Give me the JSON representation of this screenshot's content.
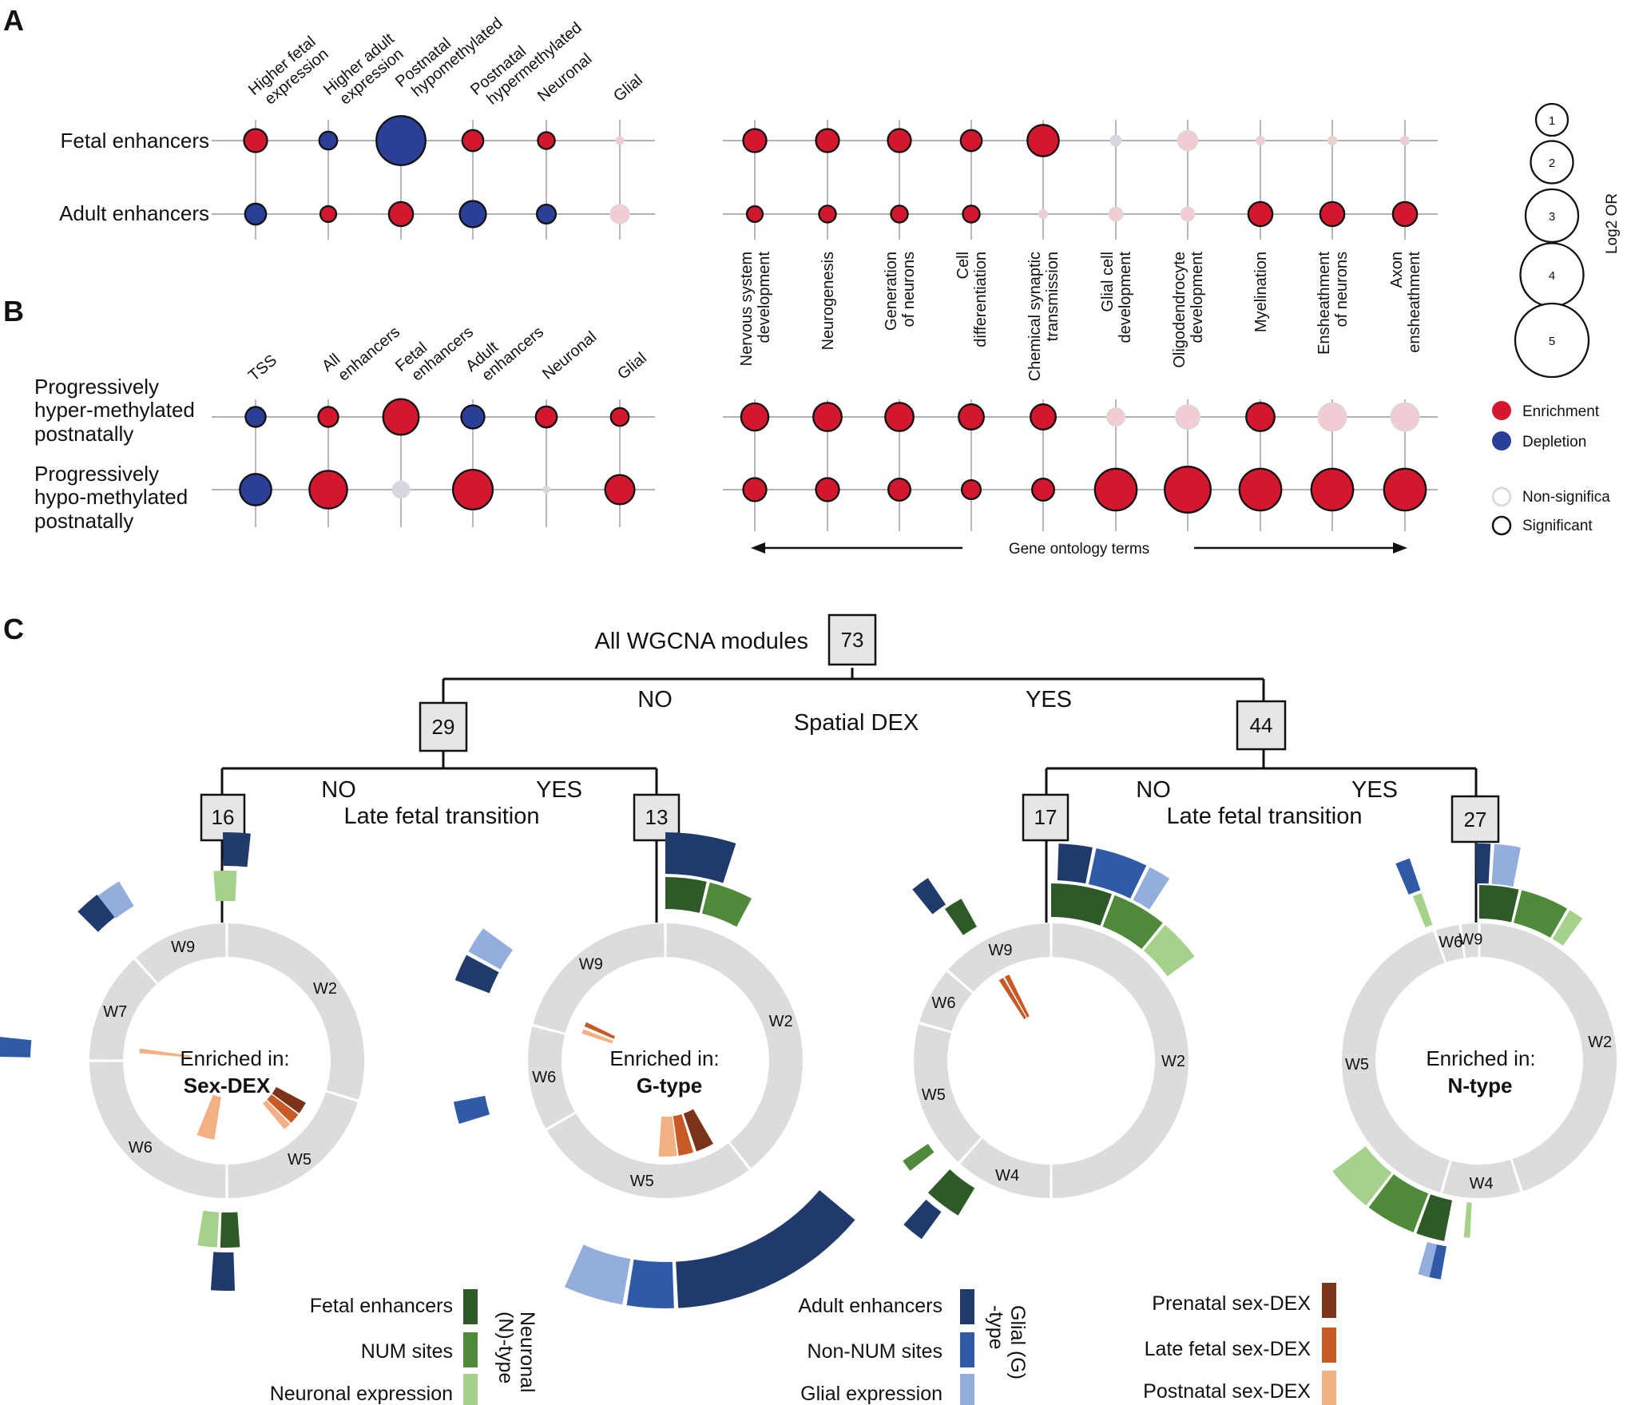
{
  "panels": {
    "a": "A",
    "b": "B",
    "c": "C"
  },
  "colors": {
    "enrichment": "#d3172e",
    "depletion": "#2b3f98",
    "nonsig_enrichment": "#f2ccd3",
    "nonsig_neutral": "#d5d8de",
    "ring": "#dcdcdc",
    "fetal_enhancers": "#2e5a28",
    "num_sites": "#4e8a3a",
    "neuronal_expression": "#a5d18a",
    "adult_enhancers": "#1f3a6b",
    "non_num_sites": "#2f5aa8",
    "glial_expression": "#93aedd",
    "prenatal_sex_dex": "#7d3319",
    "late_fetal_sex_dex": "#c85a26",
    "postnatal_sex_dex": "#f3b085"
  },
  "panel_a": {
    "rows": [
      "Fetal enhancers",
      "Adult enhancers"
    ],
    "columns": [
      "Higher fetal expression",
      "Higher adult expression",
      "Postnatal hypomethylated",
      "Postnatal hypermethylated",
      "Neuronal",
      "Glial"
    ],
    "cells": [
      [
        {
          "log2or": 2.0,
          "dir": "enrichment",
          "sig": true
        },
        {
          "log2or": 1.5,
          "dir": "depletion",
          "sig": true
        },
        {
          "log2or": 4.5,
          "dir": "depletion",
          "sig": true
        },
        {
          "log2or": 1.8,
          "dir": "enrichment",
          "sig": true
        },
        {
          "log2or": 1.4,
          "dir": "enrichment",
          "sig": true
        },
        {
          "log2or": 0.5,
          "dir": "enrichment",
          "sig": false
        }
      ],
      [
        {
          "log2or": 1.8,
          "dir": "depletion",
          "sig": true
        },
        {
          "log2or": 1.3,
          "dir": "enrichment",
          "sig": true
        },
        {
          "log2or": 2.1,
          "dir": "enrichment",
          "sig": true
        },
        {
          "log2or": 2.3,
          "dir": "depletion",
          "sig": true
        },
        {
          "log2or": 1.6,
          "dir": "depletion",
          "sig": true
        },
        {
          "log2or": 1.6,
          "dir": "enrichment",
          "sig": false
        }
      ]
    ]
  },
  "panel_b": {
    "rows": [
      "Progressively hyper-methylated postnatally",
      "Progressively hypo-methylated postnatally"
    ],
    "columns": [
      "TSS",
      "All enhancers",
      "Fetal enhancers",
      "Adult enhancers",
      "Neuronal",
      "Glial"
    ],
    "cells": [
      [
        {
          "log2or": 1.7,
          "dir": "depletion",
          "sig": true
        },
        {
          "log2or": 1.7,
          "dir": "enrichment",
          "sig": true
        },
        {
          "log2or": 3.2,
          "dir": "enrichment",
          "sig": true
        },
        {
          "log2or": 2.0,
          "dir": "depletion",
          "sig": true
        },
        {
          "log2or": 1.8,
          "dir": "enrichment",
          "sig": true
        },
        {
          "log2or": 1.5,
          "dir": "enrichment",
          "sig": true
        }
      ],
      [
        {
          "log2or": 2.8,
          "dir": "depletion",
          "sig": true
        },
        {
          "log2or": 3.4,
          "dir": "enrichment",
          "sig": true
        },
        {
          "log2or": 1.4,
          "dir": "neutral",
          "sig": false
        },
        {
          "log2or": 3.6,
          "dir": "enrichment",
          "sig": true
        },
        {
          "log2or": 0.4,
          "dir": "neutral",
          "sig": false
        },
        {
          "log2or": 2.6,
          "dir": "enrichment",
          "sig": true
        }
      ]
    ]
  },
  "go": {
    "terms": [
      "Nervous system development",
      "Neurogenesis",
      "Generation of neurons",
      "Cell differentiation",
      "Chemical synaptic transmission",
      "Glial cell development",
      "Oligodendrocyte development",
      "Myelination",
      "Ensheathment of neurons",
      "Axon ensheathment"
    ],
    "term_lines": [
      [
        "Nervous system",
        "development"
      ],
      [
        "Neurogenesis"
      ],
      [
        "Generation",
        "of neurons"
      ],
      [
        "Cell",
        "differentiation"
      ],
      [
        "Chemical synaptic",
        "transmission"
      ],
      [
        "Glial cell",
        "development"
      ],
      [
        "Oligodendrocyte",
        "development"
      ],
      [
        "Myelination"
      ],
      [
        "Ensheathment",
        "of neurons"
      ],
      [
        "Axon",
        "ensheathment"
      ]
    ],
    "a_rows": [
      [
        {
          "log2or": 2.0,
          "dir": "enrichment",
          "sig": true
        },
        {
          "log2or": 2.0,
          "dir": "enrichment",
          "sig": true
        },
        {
          "log2or": 2.0,
          "dir": "enrichment",
          "sig": true
        },
        {
          "log2or": 1.8,
          "dir": "enrichment",
          "sig": true
        },
        {
          "log2or": 2.8,
          "dir": "enrichment",
          "sig": true
        },
        {
          "log2or": 0.8,
          "dir": "neutral",
          "sig": false
        },
        {
          "log2or": 1.7,
          "dir": "enrichment",
          "sig": false
        },
        {
          "log2or": 0.6,
          "dir": "enrichment",
          "sig": false
        },
        {
          "log2or": 0.6,
          "dir": "enrichment",
          "sig": false
        },
        {
          "log2or": 0.6,
          "dir": "enrichment",
          "sig": false
        }
      ],
      [
        {
          "log2or": 1.3,
          "dir": "enrichment",
          "sig": true
        },
        {
          "log2or": 1.4,
          "dir": "enrichment",
          "sig": true
        },
        {
          "log2or": 1.4,
          "dir": "enrichment",
          "sig": true
        },
        {
          "log2or": 1.4,
          "dir": "enrichment",
          "sig": true
        },
        {
          "log2or": 0.6,
          "dir": "enrichment",
          "sig": false
        },
        {
          "log2or": 1.1,
          "dir": "enrichment",
          "sig": false
        },
        {
          "log2or": 1.1,
          "dir": "enrichment",
          "sig": false
        },
        {
          "log2or": 2.1,
          "dir": "enrichment",
          "sig": true
        },
        {
          "log2or": 2.1,
          "dir": "enrichment",
          "sig": true
        },
        {
          "log2or": 2.1,
          "dir": "enrichment",
          "sig": true
        }
      ]
    ],
    "b_rows": [
      [
        {
          "log2or": 2.4,
          "dir": "enrichment",
          "sig": true
        },
        {
          "log2or": 2.5,
          "dir": "enrichment",
          "sig": true
        },
        {
          "log2or": 2.5,
          "dir": "enrichment",
          "sig": true
        },
        {
          "log2or": 2.2,
          "dir": "enrichment",
          "sig": true
        },
        {
          "log2or": 2.2,
          "dir": "enrichment",
          "sig": true
        },
        {
          "log2or": 1.5,
          "dir": "enrichment",
          "sig": false
        },
        {
          "log2or": 2.1,
          "dir": "enrichment",
          "sig": false
        },
        {
          "log2or": 2.5,
          "dir": "enrichment",
          "sig": true
        },
        {
          "log2or": 2.5,
          "dir": "enrichment",
          "sig": false
        },
        {
          "log2or": 2.5,
          "dir": "enrichment",
          "sig": false
        }
      ],
      [
        {
          "log2or": 2.0,
          "dir": "enrichment",
          "sig": true
        },
        {
          "log2or": 2.0,
          "dir": "enrichment",
          "sig": true
        },
        {
          "log2or": 1.9,
          "dir": "enrichment",
          "sig": true
        },
        {
          "log2or": 1.6,
          "dir": "enrichment",
          "sig": true
        },
        {
          "log2or": 1.9,
          "dir": "enrichment",
          "sig": true
        },
        {
          "log2or": 3.8,
          "dir": "enrichment",
          "sig": true
        },
        {
          "log2or": 4.2,
          "dir": "enrichment",
          "sig": true
        },
        {
          "log2or": 3.8,
          "dir": "enrichment",
          "sig": true
        },
        {
          "log2or": 3.8,
          "dir": "enrichment",
          "sig": true
        },
        {
          "log2or": 3.8,
          "dir": "enrichment",
          "sig": true
        }
      ]
    ],
    "axis_label": "Gene ontology terms"
  },
  "legend": {
    "size_title": "Log2 OR",
    "sizes": [
      "1",
      "2",
      "3",
      "4",
      "5"
    ],
    "enrichment": "Enrichment",
    "depletion": "Depletion",
    "non_significant": "Non-significa",
    "significant": "Significant"
  },
  "panel_c": {
    "root_label": "All WGCNA modules",
    "root_count": "73",
    "spatial_label": "Spatial DEX",
    "late_label": "Late fetal transition",
    "no": "NO",
    "yes": "YES",
    "counts": [
      "29",
      "44",
      "16",
      "13",
      "17",
      "27"
    ],
    "enriched_in": "Enriched in:",
    "rings": [
      {
        "name": "Sex-DEX",
        "color": "#7d3a17",
        "modules": [
          {
            "label": "W2",
            "start": 0,
            "end": 107
          },
          {
            "label": "W5",
            "start": 107,
            "end": 180
          },
          {
            "label": "W6",
            "start": 180,
            "end": 270
          },
          {
            "label": "W7",
            "start": 270,
            "end": 318
          },
          {
            "label": "W9",
            "start": 318,
            "end": 360
          }
        ]
      },
      {
        "name": "G-type",
        "color": "#1e3a6a",
        "modules": [
          {
            "label": "W2",
            "start": 0,
            "end": 142
          },
          {
            "label": "W5",
            "start": 142,
            "end": 240
          },
          {
            "label": "W6",
            "start": 240,
            "end": 285
          },
          {
            "label": "W9",
            "start": 285,
            "end": 360
          }
        ]
      },
      {
        "name": "",
        "color": "#222222",
        "modules": [
          {
            "label": "W2",
            "start": 0,
            "end": 180
          },
          {
            "label": "W4",
            "start": 180,
            "end": 222
          },
          {
            "label": "W5",
            "start": 222,
            "end": 286
          },
          {
            "label": "W6",
            "start": 286,
            "end": 311
          },
          {
            "label": "W9",
            "start": 311,
            "end": 360
          }
        ]
      },
      {
        "name": "N-type",
        "color": "#2f5a27",
        "modules": [
          {
            "label": "W2",
            "start": 0,
            "end": 162
          },
          {
            "label": "W4",
            "start": 162,
            "end": 196
          },
          {
            "label": "W5",
            "start": 196,
            "end": 341
          },
          {
            "label": "W6",
            "start": 341,
            "end": 352
          },
          {
            "label": "W9",
            "start": 352,
            "end": 360
          }
        ]
      }
    ],
    "legend_groups": [
      {
        "group": "Neuronal (N)-type",
        "items": [
          "Fetal enhancers",
          "NUM sites",
          "Neuronal expression"
        ]
      },
      {
        "group": "Glial (G) -type",
        "items": [
          "Adult enhancers",
          "Non-NUM sites",
          "Glial expression"
        ]
      },
      {
        "group": "",
        "items": [
          "Prenatal sex-DEX",
          "Late fetal sex-DEX",
          "Postnatal sex-DEX"
        ]
      }
    ]
  }
}
